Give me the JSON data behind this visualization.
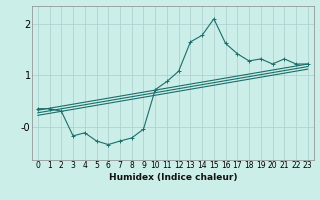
{
  "bg_color": "#cceee8",
  "grid_color": "#aacccc",
  "line_color": "#1a6e6a",
  "xlabel": "Humidex (Indice chaleur)",
  "xlim": [
    -0.5,
    23.5
  ],
  "ylim": [
    -0.65,
    2.35
  ],
  "yticks": [
    0,
    1,
    2
  ],
  "ytick_labels": [
    "-0",
    "1",
    "2"
  ],
  "xticks": [
    0,
    1,
    2,
    3,
    4,
    5,
    6,
    7,
    8,
    9,
    10,
    11,
    12,
    13,
    14,
    15,
    16,
    17,
    18,
    19,
    20,
    21,
    22,
    23
  ],
  "curve1_x": [
    0,
    1,
    2,
    3,
    4,
    5,
    6,
    7,
    8,
    9,
    10,
    11,
    12,
    13,
    14,
    15,
    16,
    17,
    18,
    19,
    20,
    21,
    22,
    23
  ],
  "curve1_y": [
    0.35,
    0.35,
    0.3,
    -0.18,
    -0.12,
    -0.28,
    -0.35,
    -0.28,
    -0.22,
    -0.05,
    0.72,
    0.88,
    1.08,
    1.65,
    1.78,
    2.1,
    1.62,
    1.42,
    1.28,
    1.32,
    1.22,
    1.32,
    1.22,
    1.22
  ],
  "regline1_x": [
    0,
    23
  ],
  "regline1_y": [
    0.32,
    1.22
  ],
  "regline2_x": [
    0,
    23
  ],
  "regline2_y": [
    0.27,
    1.17
  ],
  "regline3_x": [
    0,
    23
  ],
  "regline3_y": [
    0.22,
    1.12
  ],
  "spine_color": "#888888",
  "tick_label_fontsize": 5.5,
  "xlabel_fontsize": 6.5
}
